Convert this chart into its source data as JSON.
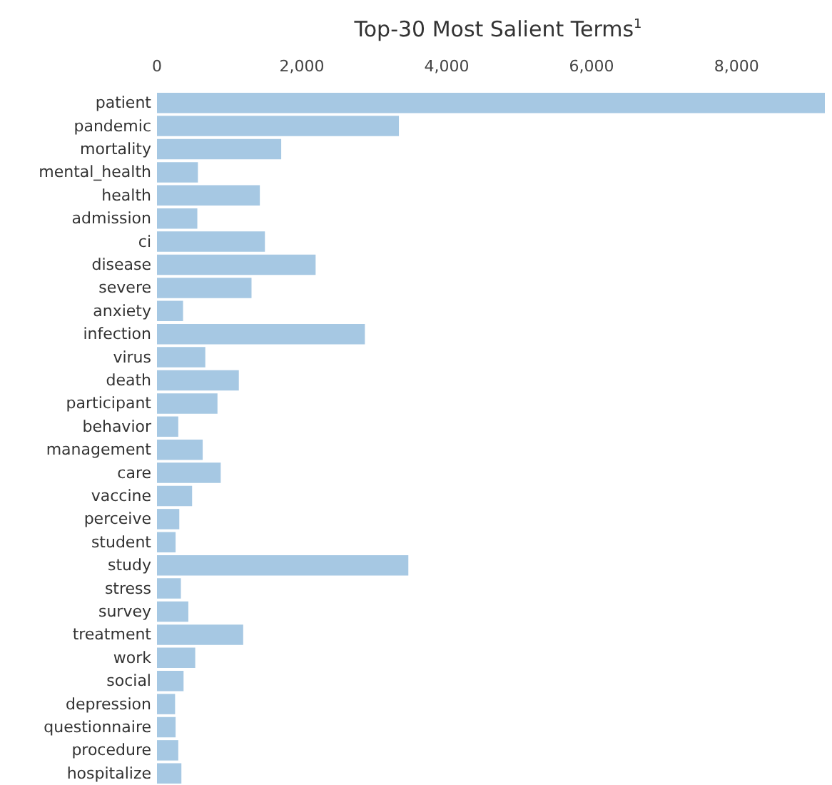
{
  "chart_data": {
    "type": "bar",
    "orientation": "horizontal",
    "title": "Top-30 Most Salient Terms$^{1}$",
    "categories": [
      "patient",
      "pandemic",
      "mortality",
      "mental_health",
      "health",
      "admission",
      "ci",
      "disease",
      "severe",
      "anxiety",
      "infection",
      "virus",
      "death",
      "participant",
      "behavior",
      "management",
      "care",
      "vaccine",
      "perceive",
      "student",
      "study",
      "stress",
      "survey",
      "treatment",
      "work",
      "social",
      "depression",
      "questionnaire",
      "procedure",
      "hospitalize"
    ],
    "values": [
      9220,
      3340,
      1715,
      565,
      1420,
      557,
      1490,
      2190,
      1305,
      360,
      2870,
      667,
      1130,
      835,
      294,
      631,
      880,
      485,
      308,
      257,
      3470,
      330,
      433,
      1190,
      528,
      367,
      250,
      257,
      294,
      337
    ],
    "color": "#a6c8e3",
    "xlim": [
      0,
      9220
    ],
    "xticks": [
      {
        "value": 0,
        "label": "0"
      },
      {
        "value": 2000,
        "label": "2,000"
      },
      {
        "value": 4000,
        "label": "4,000"
      },
      {
        "value": 6000,
        "label": "6,000"
      },
      {
        "value": 8000,
        "label": "8,000"
      }
    ],
    "grid": false
  }
}
